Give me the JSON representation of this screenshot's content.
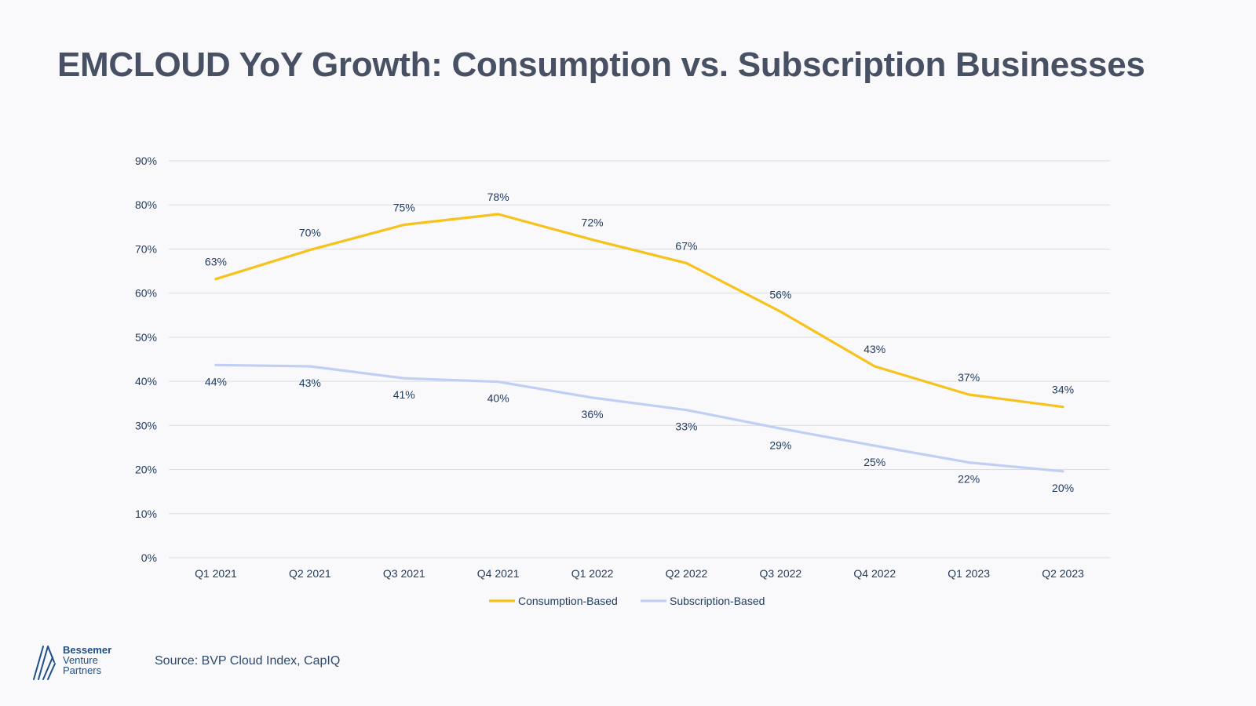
{
  "title": "EMCLOUD YoY Growth: Consumption vs. Subscription Businesses",
  "source": "Source: BVP Cloud Index, CapIQ",
  "logo": {
    "line1": "Bessemer",
    "line2": "Venture",
    "line3": "Partners"
  },
  "colors": {
    "consumption": "#f7c21b",
    "subscription": "#bfd0f4",
    "text": "#1e3a5f",
    "grid": "#dcdde2"
  },
  "chart_data": {
    "type": "line",
    "title": "EMCLOUD YoY Growth: Consumption vs. Subscription Businesses",
    "xlabel": "",
    "ylabel": "",
    "categories": [
      "Q1 2021",
      "Q2 2021",
      "Q3 2021",
      "Q4 2021",
      "Q1 2022",
      "Q2 2022",
      "Q3 2022",
      "Q4 2022",
      "Q1 2023",
      "Q2 2023"
    ],
    "ylim": [
      0,
      90
    ],
    "yticks": [
      0,
      10,
      20,
      30,
      40,
      50,
      60,
      70,
      80,
      90
    ],
    "ytick_labels": [
      "0%",
      "10%",
      "20%",
      "30%",
      "40%",
      "50%",
      "60%",
      "70%",
      "80%",
      "90%"
    ],
    "grid": true,
    "legend_position": "bottom",
    "series": [
      {
        "name": "Consumption-Based",
        "values": [
          63.2,
          69.8,
          75.5,
          77.9,
          72.1,
          66.8,
          55.8,
          43.4,
          37.0,
          34.2
        ],
        "labels": [
          "63%",
          "70%",
          "75%",
          "78%",
          "72%",
          "67%",
          "56%",
          "43%",
          "37%",
          "34%"
        ],
        "label_position": "above"
      },
      {
        "name": "Subscription-Based",
        "values": [
          43.7,
          43.4,
          40.7,
          39.9,
          36.3,
          33.5,
          29.3,
          25.4,
          21.6,
          19.6
        ],
        "labels": [
          "44%",
          "43%",
          "41%",
          "40%",
          "36%",
          "33%",
          "29%",
          "25%",
          "22%",
          "20%"
        ],
        "label_position": "below"
      }
    ]
  }
}
